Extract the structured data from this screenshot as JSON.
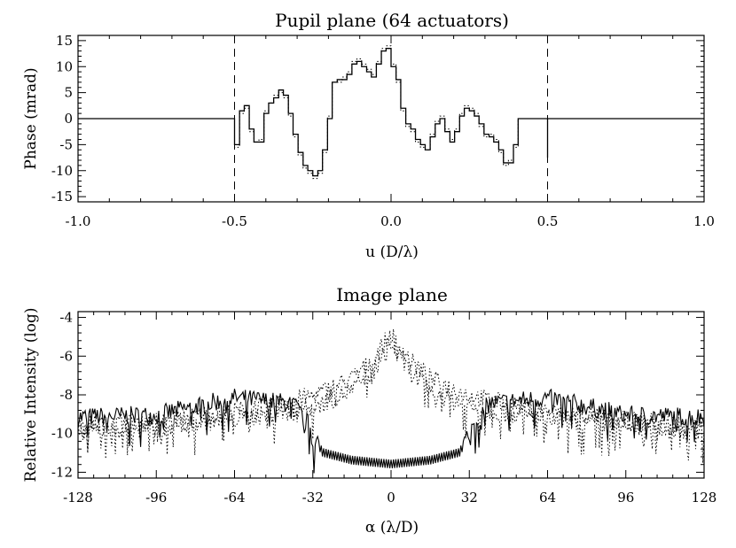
{
  "chart_data": [
    {
      "type": "line",
      "title": "Pupil plane (64 actuators)",
      "xlabel": "u (D/λ)",
      "ylabel": "Phase (mrad)",
      "xlim": [
        -1.0,
        1.0
      ],
      "ylim": [
        -16,
        16
      ],
      "xticks": [
        "-1.0",
        "-0.5",
        "0.0",
        "0.5",
        "1.0"
      ],
      "yticks": [
        "-15",
        "-10",
        "-5",
        "0",
        "5",
        "10",
        "15"
      ],
      "xtick_values": [
        -1.0,
        -0.5,
        0.0,
        0.5,
        1.0
      ],
      "ytick_values": [
        -15,
        -10,
        -5,
        0,
        5,
        10,
        15
      ],
      "vlines": [
        -0.5,
        0.5
      ],
      "series": [
        {
          "style": "solid",
          "x": [
            -1.0,
            -0.5,
            -0.5,
            -0.484,
            -0.469,
            -0.453,
            -0.438,
            -0.422,
            -0.406,
            -0.391,
            -0.375,
            -0.359,
            -0.344,
            -0.328,
            -0.313,
            -0.297,
            -0.281,
            -0.266,
            -0.25,
            -0.234,
            -0.219,
            -0.203,
            -0.188,
            -0.172,
            -0.156,
            -0.141,
            -0.125,
            -0.109,
            -0.094,
            -0.078,
            -0.063,
            -0.047,
            -0.031,
            -0.016,
            0.0,
            0.016,
            0.031,
            0.047,
            0.063,
            0.078,
            0.094,
            0.109,
            0.125,
            0.141,
            0.156,
            0.172,
            0.188,
            0.203,
            0.219,
            0.234,
            0.25,
            0.266,
            0.281,
            0.297,
            0.313,
            0.328,
            0.344,
            0.359,
            0.375,
            0.391,
            0.406,
            0.422,
            0.438,
            0.453,
            0.469,
            0.484,
            0.5,
            0.5,
            1.0
          ],
          "y": [
            0,
            0,
            -5,
            1.5,
            2.5,
            -2,
            -4.5,
            -4.5,
            1,
            3,
            4,
            5.5,
            4.5,
            1,
            -3,
            -6.5,
            -9,
            -10,
            -11,
            -10,
            -6,
            0,
            7,
            7.5,
            7.5,
            8.5,
            10.5,
            11,
            10,
            9,
            8,
            10.5,
            13,
            13.5,
            10,
            7.5,
            2,
            -1,
            -2,
            -4,
            -5,
            -6,
            -3.5,
            -1,
            0,
            -2.5,
            -4.5,
            -2.5,
            0.5,
            2,
            1.5,
            0.5,
            -1,
            -3,
            -3.5,
            -4.5,
            -6,
            -8.5,
            -8.5,
            -5,
            0,
            0,
            0,
            0,
            0,
            0,
            -7.5,
            0,
            0
          ]
        },
        {
          "style": "dotted",
          "x": [
            -1.0,
            -0.5,
            -0.5,
            -0.484,
            -0.469,
            -0.453,
            -0.438,
            -0.422,
            -0.406,
            -0.391,
            -0.375,
            -0.359,
            -0.344,
            -0.328,
            -0.313,
            -0.297,
            -0.281,
            -0.266,
            -0.25,
            -0.234,
            -0.219,
            -0.203,
            -0.188,
            -0.172,
            -0.156,
            -0.141,
            -0.125,
            -0.109,
            -0.094,
            -0.078,
            -0.063,
            -0.047,
            -0.031,
            -0.016,
            0.0,
            0.016,
            0.031,
            0.047,
            0.063,
            0.078,
            0.094,
            0.109,
            0.125,
            0.141,
            0.156,
            0.172,
            0.188,
            0.203,
            0.219,
            0.234,
            0.25,
            0.266,
            0.281,
            0.297,
            0.313,
            0.328,
            0.344,
            0.359,
            0.375,
            0.391,
            0.406,
            0.422,
            0.438,
            0.453,
            0.469,
            0.484,
            0.5,
            0.5,
            1.0
          ],
          "y": [
            0,
            0,
            -5.5,
            1,
            2,
            -2.5,
            -4.5,
            -4,
            1.5,
            3,
            4.5,
            5,
            4,
            0.5,
            -3.5,
            -7,
            -9.5,
            -10.5,
            -11.5,
            -10.5,
            -6.5,
            0.5,
            7,
            7,
            8,
            9,
            11,
            11.5,
            10.5,
            9.5,
            8.5,
            11,
            13.5,
            14,
            10.5,
            7,
            1.5,
            -1.5,
            -2.5,
            -4.5,
            -5.5,
            -6,
            -3,
            -0.5,
            0.5,
            -2,
            -4,
            -2,
            1,
            2.5,
            2,
            1,
            -1.5,
            -3.5,
            -3,
            -4,
            -6.5,
            -9,
            -8,
            -5.5,
            0,
            0,
            0,
            0,
            0,
            0,
            -8,
            0,
            0
          ]
        }
      ]
    },
    {
      "type": "line",
      "title": "Image plane",
      "xlabel": "α (λ/D)",
      "ylabel": "Relative Intensity (log)",
      "xlim": [
        -128,
        128
      ],
      "ylim": [
        -12.3,
        -3.7
      ],
      "xticks": [
        "-128",
        "-96",
        "-64",
        "-32",
        "0",
        "32",
        "64",
        "96",
        "128"
      ],
      "yticks": [
        "-12",
        "-10",
        "-8",
        "-6",
        "-4"
      ],
      "xtick_values": [
        -128,
        -96,
        -64,
        -32,
        0,
        32,
        64,
        96,
        128
      ],
      "ytick_values": [
        -12,
        -10,
        -8,
        -6,
        -4
      ],
      "series": [
        {
          "style": "solid",
          "envelope": {
            "x": [
              -128,
              -96,
              -64,
              -40,
              -33,
              -32,
              -31,
              -28,
              -16,
              0,
              16,
              28,
              31,
              32,
              33,
              40,
              64,
              96,
              128
            ],
            "y": [
              -9.3,
              -9.2,
              -8.3,
              -8.6,
              -9.8,
              -10.8,
              -10.3,
              -11.0,
              -11.4,
              -11.6,
              -11.4,
              -11.0,
              -10.3,
              -10.8,
              -9.8,
              -8.6,
              -8.3,
              -9.2,
              -9.3
            ]
          }
        },
        {
          "style": "dotted",
          "envelope": {
            "x": [
              -128,
              -96,
              -64,
              -32,
              -16,
              -8,
              0,
              8,
              16,
              32,
              64,
              96,
              128
            ],
            "y": [
              -9.7,
              -9.5,
              -9.0,
              -8.2,
              -7.3,
              -6.4,
              -5.0,
              -6.4,
              -7.3,
              -8.2,
              -9.0,
              -9.5,
              -9.7
            ]
          }
        },
        {
          "style": "dotted",
          "envelope": {
            "x": [
              -128,
              -96,
              -64,
              -32,
              -16,
              -8,
              0,
              8,
              16,
              32,
              64,
              96,
              128
            ],
            "y": [
              -10.0,
              -9.8,
              -9.4,
              -8.8,
              -7.9,
              -7.0,
              -5.6,
              -7.0,
              -7.9,
              -8.8,
              -9.4,
              -9.8,
              -10.0
            ]
          }
        }
      ]
    }
  ]
}
